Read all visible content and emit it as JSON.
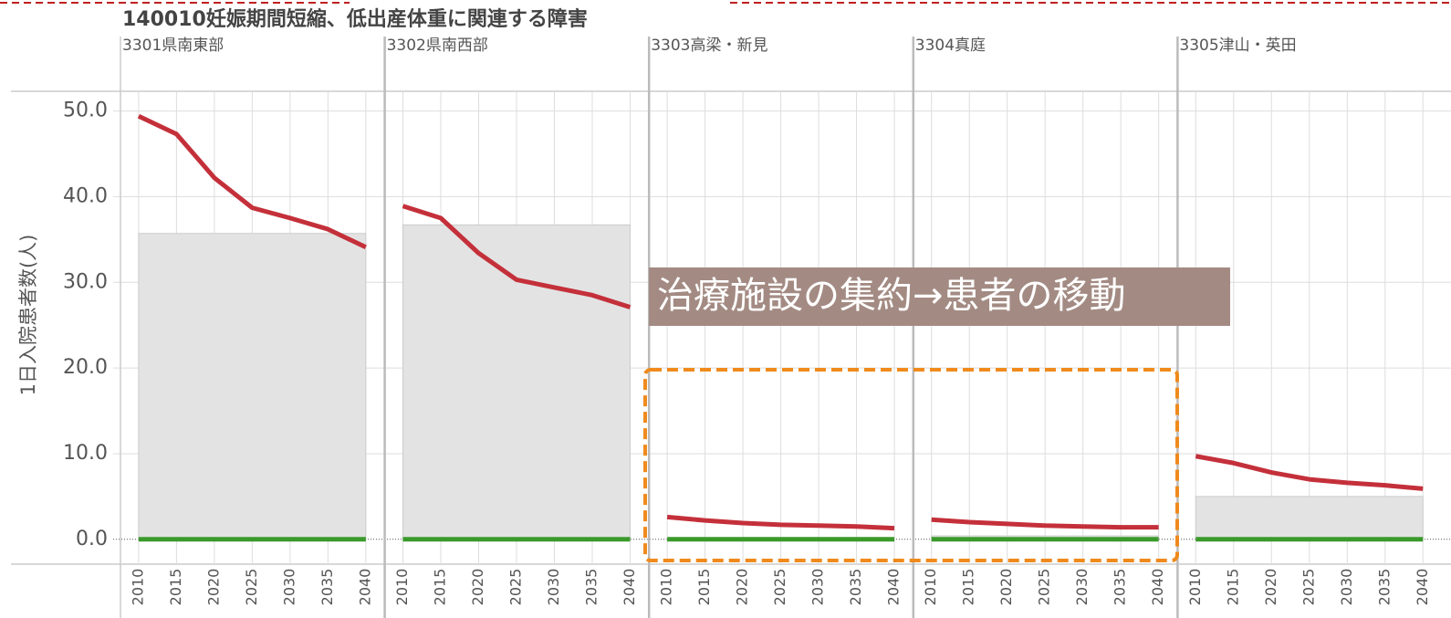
{
  "chart_data": {
    "type": "line",
    "title": "140010妊娠期間短縮、低出産体重に関連する障害",
    "ylabel": "1日入院患者数(人)",
    "ylim": [
      -2.9,
      52.3
    ],
    "yticks": [
      {
        "value": 0,
        "label": "0.0"
      },
      {
        "value": 10,
        "label": "10.0"
      },
      {
        "value": 20,
        "label": "20.0"
      },
      {
        "value": 30,
        "label": "30.0"
      },
      {
        "value": 40,
        "label": "40.0"
      },
      {
        "value": 50,
        "label": "50.0"
      }
    ],
    "x": [
      2010,
      2015,
      2020,
      2025,
      2030,
      2035,
      2040
    ],
    "xlim": [
      2007.6,
      2042.5
    ],
    "grid": true,
    "annotation": "治療施設の集約→患者の移動",
    "panels": [
      {
        "title": "3301県南東部",
        "series": [
          {
            "type": "area",
            "color": "#e3e3e3",
            "values": [
              35.7,
              35.7,
              35.7,
              35.7,
              35.7,
              35.7,
              35.7
            ]
          },
          {
            "type": "line",
            "color": "#c4303a",
            "values": [
              49.4,
              47.3,
              42.2,
              38.7,
              37.5,
              36.2,
              34.1
            ]
          },
          {
            "type": "line",
            "color": "#3a9a2a",
            "values": [
              0,
              0,
              0,
              0,
              0,
              0,
              0
            ]
          }
        ]
      },
      {
        "title": "3302県南西部",
        "series": [
          {
            "type": "area",
            "color": "#e3e3e3",
            "values": [
              36.7,
              36.7,
              36.7,
              36.7,
              36.7,
              36.7,
              36.7
            ]
          },
          {
            "type": "line",
            "color": "#c4303a",
            "values": [
              38.9,
              37.5,
              33.4,
              30.3,
              29.4,
              28.5,
              27.1
            ]
          },
          {
            "type": "line",
            "color": "#3a9a2a",
            "values": [
              0,
              0,
              0,
              0,
              0,
              0,
              0
            ]
          }
        ]
      },
      {
        "title": "3303高梁・新見",
        "series": [
          {
            "type": "area",
            "color": "#e3e3e3",
            "values": [
              0.1,
              0.1,
              0.1,
              0.1,
              0.1,
              0.1,
              0.1
            ]
          },
          {
            "type": "line",
            "color": "#c4303a",
            "values": [
              2.6,
              2.2,
              1.9,
              1.7,
              1.6,
              1.5,
              1.3
            ]
          },
          {
            "type": "line",
            "color": "#3a9a2a",
            "values": [
              0,
              0,
              0,
              0,
              0,
              0,
              0
            ]
          }
        ]
      },
      {
        "title": "3304真庭",
        "series": [
          {
            "type": "area",
            "color": "#e3e3e3",
            "values": [
              0.4,
              0.4,
              0.4,
              0.4,
              0.4,
              0.4,
              0.4
            ]
          },
          {
            "type": "line",
            "color": "#c4303a",
            "values": [
              2.3,
              2.0,
              1.8,
              1.6,
              1.5,
              1.4,
              1.4
            ]
          },
          {
            "type": "line",
            "color": "#3a9a2a",
            "values": [
              0,
              0,
              0,
              0,
              0,
              0,
              0
            ]
          }
        ]
      },
      {
        "title": "3305津山・英田",
        "series": [
          {
            "type": "area",
            "color": "#e3e3e3",
            "values": [
              5.0,
              5.0,
              5.0,
              5.0,
              5.0,
              5.0,
              5.0
            ]
          },
          {
            "type": "line",
            "color": "#c4303a",
            "values": [
              9.7,
              8.9,
              7.8,
              7.0,
              6.6,
              6.3,
              5.9
            ]
          },
          {
            "type": "line",
            "color": "#3a9a2a",
            "values": [
              0,
              0,
              0,
              0,
              0,
              0,
              0
            ]
          }
        ]
      }
    ]
  }
}
